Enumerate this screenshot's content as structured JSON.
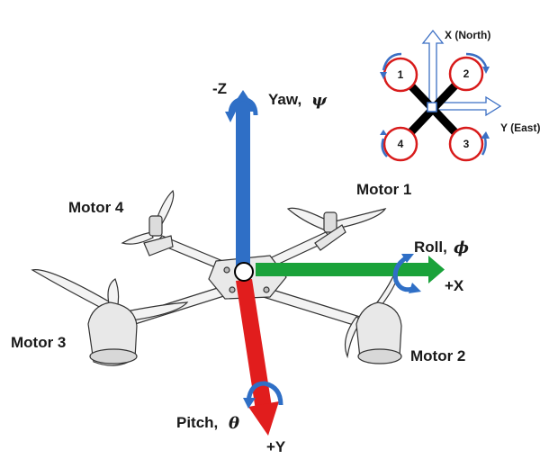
{
  "axes": {
    "yaw": {
      "axis": "-Z",
      "name": "Yaw,",
      "symbol": "ψ",
      "color": "#2f6fc6"
    },
    "roll": {
      "axis": "+X",
      "name": "Roll,",
      "symbol": "ϕ",
      "color": "#1aa23a"
    },
    "pitch": {
      "axis": "+Y",
      "name": "Pitch,",
      "symbol": "θ",
      "color": "#e11d1d"
    }
  },
  "motors": [
    {
      "label": "Motor 1"
    },
    {
      "label": "Motor 2"
    },
    {
      "label": "Motor 3"
    },
    {
      "label": "Motor 4"
    }
  ],
  "inset": {
    "x_label": "X (North)",
    "y_label": "Y (East)",
    "motor_numbers": [
      "1",
      "2",
      "3",
      "4"
    ],
    "ring_color": "#d81b1b",
    "arrow_color": "#3b6fc4"
  }
}
